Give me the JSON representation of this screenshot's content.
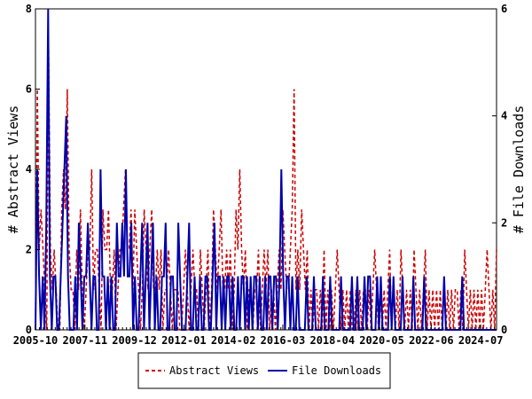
{
  "chart_data": {
    "type": "line",
    "title": "",
    "xlabel": "",
    "ylabel_left": "# Abstract Views",
    "ylabel_right": "# File Downloads",
    "ylim_left": [
      0,
      8
    ],
    "ylim_right": [
      0,
      6
    ],
    "yticks_left": [
      "0",
      "2",
      "4",
      "6",
      "8"
    ],
    "yticks_right": [
      "0",
      "2",
      "4",
      "6"
    ],
    "xlim": [
      "2005-10",
      "2025-03"
    ],
    "xticks": [
      "2005-10",
      "2007-11",
      "2009-12",
      "2012-01",
      "2014-02",
      "2016-03",
      "2018-04",
      "2020-05",
      "2022-06",
      "2024-07"
    ],
    "legend_position": "bottom-center",
    "grid": false,
    "series": [
      {
        "name": "Abstract Views",
        "color": "#cc0000",
        "style": "dashed",
        "axis": "left",
        "values": [
          0,
          6,
          2,
          3,
          2,
          1,
          0,
          7,
          2,
          1,
          2,
          1,
          0,
          0,
          3,
          4,
          3,
          6,
          2,
          1,
          1,
          0,
          2,
          1,
          3,
          1,
          0,
          1,
          2,
          2,
          4,
          1,
          2,
          2,
          1,
          0,
          3,
          2,
          2,
          3,
          1,
          1,
          2,
          0,
          1,
          2,
          2,
          3,
          4,
          2,
          2,
          3,
          1,
          3,
          2,
          1,
          0,
          1,
          3,
          2,
          1,
          2,
          3,
          1,
          1,
          2,
          1,
          2,
          0,
          1,
          1,
          2,
          1,
          0,
          1,
          1,
          1,
          0,
          0,
          1,
          2,
          1,
          0,
          1,
          2,
          1,
          1,
          0,
          2,
          1,
          0,
          1,
          2,
          0,
          1,
          3,
          2,
          1,
          2,
          3,
          1,
          1,
          2,
          1,
          2,
          0,
          1,
          3,
          2,
          4,
          2,
          1,
          2,
          0,
          1,
          1,
          0,
          1,
          1,
          2,
          0,
          1,
          2,
          1,
          2,
          0,
          1,
          1,
          0,
          1,
          2,
          1,
          3,
          2,
          1,
          1,
          2,
          3,
          6,
          1,
          2,
          1,
          3,
          2,
          1,
          2,
          0,
          1,
          0,
          1,
          1,
          0,
          1,
          0,
          2,
          0,
          1,
          0,
          1,
          0,
          1,
          2,
          1,
          0,
          1,
          0,
          1,
          0,
          1,
          0,
          0,
          1,
          0,
          1,
          0,
          1,
          1,
          0,
          1,
          0,
          1,
          2,
          1,
          0,
          1,
          0,
          1,
          0,
          1,
          2,
          0,
          1,
          0,
          1,
          0,
          2,
          1,
          0,
          1,
          0,
          1,
          0,
          2,
          1,
          0,
          1,
          0,
          1,
          2,
          0,
          1,
          0,
          1,
          0,
          1,
          0,
          1,
          0,
          1,
          0,
          1,
          0,
          1,
          0,
          1,
          1,
          0,
          1,
          0,
          2,
          1,
          0,
          1,
          0,
          1,
          0,
          1,
          0,
          1,
          0,
          1,
          2,
          1,
          0,
          1,
          0,
          2
        ]
      },
      {
        "name": "File Downloads",
        "color": "#0000aa",
        "style": "solid",
        "axis": "right",
        "values": [
          0,
          3,
          1,
          0,
          1,
          0,
          2,
          6,
          1,
          0,
          1,
          1,
          0,
          0,
          1,
          2,
          3,
          4,
          1,
          0,
          0,
          0,
          1,
          0,
          2,
          1,
          0,
          1,
          1,
          2,
          1,
          0,
          1,
          1,
          0,
          0,
          3,
          1,
          1,
          0,
          1,
          0,
          1,
          0,
          0,
          2,
          1,
          1,
          2,
          1,
          3,
          1,
          1,
          2,
          0,
          1,
          0,
          0,
          1,
          2,
          0,
          1,
          2,
          0,
          1,
          2,
          0,
          1,
          0,
          0,
          1,
          1,
          2,
          0,
          0,
          1,
          1,
          0,
          0,
          2,
          1,
          0,
          0,
          0,
          1,
          2,
          0,
          0,
          1,
          0,
          0,
          1,
          0,
          0,
          1,
          1,
          0,
          0,
          1,
          2,
          0,
          1,
          1,
          0,
          1,
          0,
          1,
          1,
          0,
          1,
          0,
          0,
          1,
          0,
          1,
          1,
          0,
          1,
          0,
          1,
          0,
          1,
          1,
          0,
          1,
          0,
          0,
          1,
          0,
          1,
          1,
          0,
          1,
          1,
          0,
          1,
          3,
          1,
          0,
          1,
          1,
          0,
          1,
          0,
          0,
          1,
          0,
          0,
          0,
          0,
          1,
          0,
          0,
          0,
          1,
          0,
          0,
          0,
          0,
          1,
          0,
          0,
          0,
          1,
          0,
          0,
          0,
          0,
          0,
          1,
          0,
          0,
          0,
          0,
          0,
          1,
          0,
          0,
          1,
          0,
          0,
          0,
          1,
          0,
          1,
          1,
          0,
          0,
          0,
          1,
          0,
          1,
          0,
          0,
          0,
          0,
          1,
          0,
          1,
          0,
          0,
          0,
          0,
          1,
          0,
          0,
          0,
          0,
          0,
          1,
          0,
          0,
          0,
          0,
          0,
          1,
          0,
          0,
          0,
          0,
          0,
          0,
          0,
          0,
          0,
          0,
          1,
          0,
          0,
          0,
          0,
          0,
          0,
          0,
          0,
          0,
          1,
          0,
          0,
          0,
          0,
          0,
          0,
          0,
          0,
          0,
          0,
          0,
          0,
          0,
          0,
          0,
          0,
          0,
          0,
          0
        ]
      }
    ]
  }
}
